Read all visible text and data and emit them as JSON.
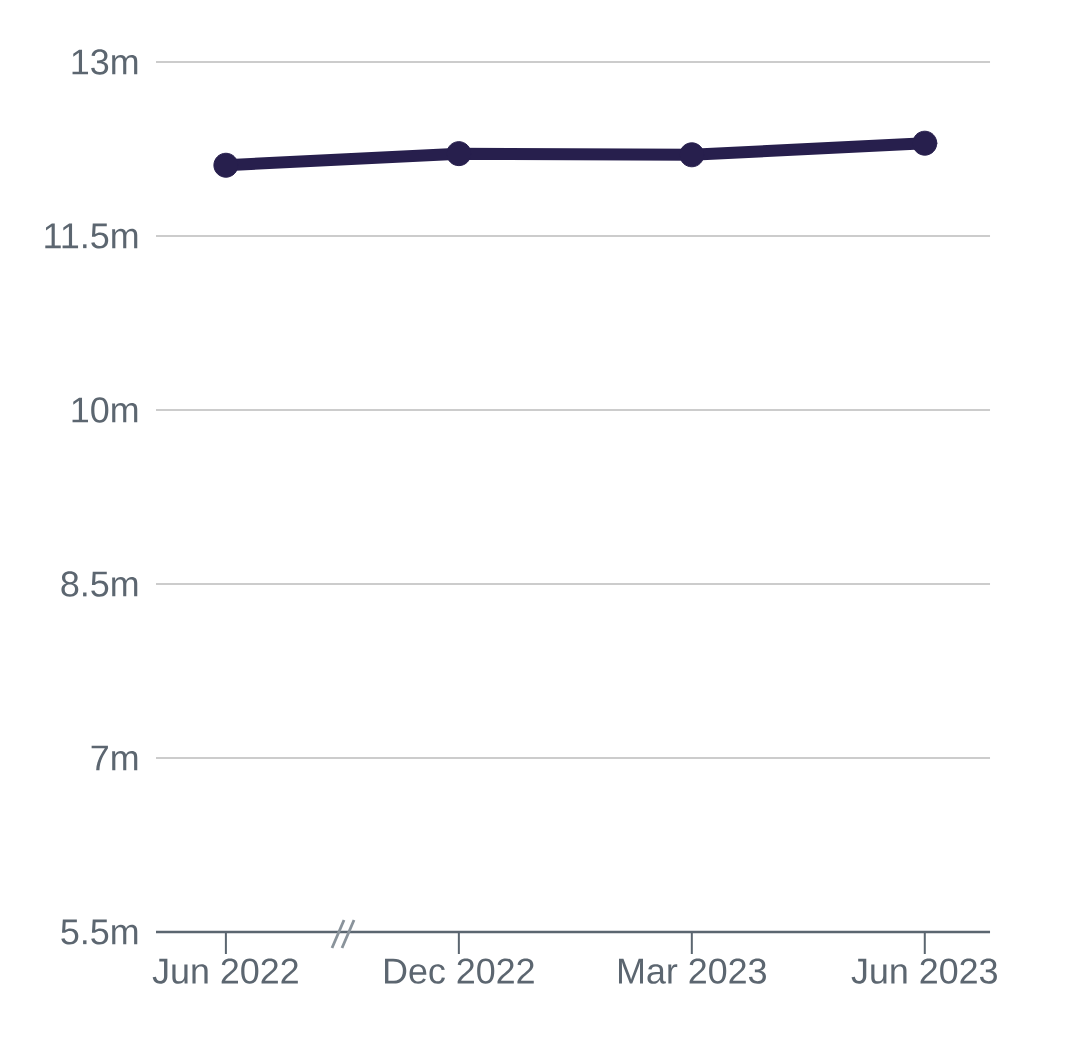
{
  "chart_data": {
    "type": "line",
    "categories": [
      "Jun 2022",
      "Dec 2022",
      "Mar 2023",
      "Jun 2023"
    ],
    "series": [
      {
        "color": "#271f4d",
        "values": [
          12.11,
          12.21,
          12.2,
          12.3
        ]
      }
    ],
    "ylim": [
      5.5,
      13
    ],
    "yticks": [
      {
        "value": 5.5,
        "label": "5.5m"
      },
      {
        "value": 7,
        "label": "7m"
      },
      {
        "value": 8.5,
        "label": "8.5m"
      },
      {
        "value": 10,
        "label": "10m"
      },
      {
        "value": 11.5,
        "label": "11.5m"
      },
      {
        "value": 13,
        "label": "13m"
      }
    ],
    "grid": "y",
    "marker": "circle",
    "line_style": "solid"
  }
}
